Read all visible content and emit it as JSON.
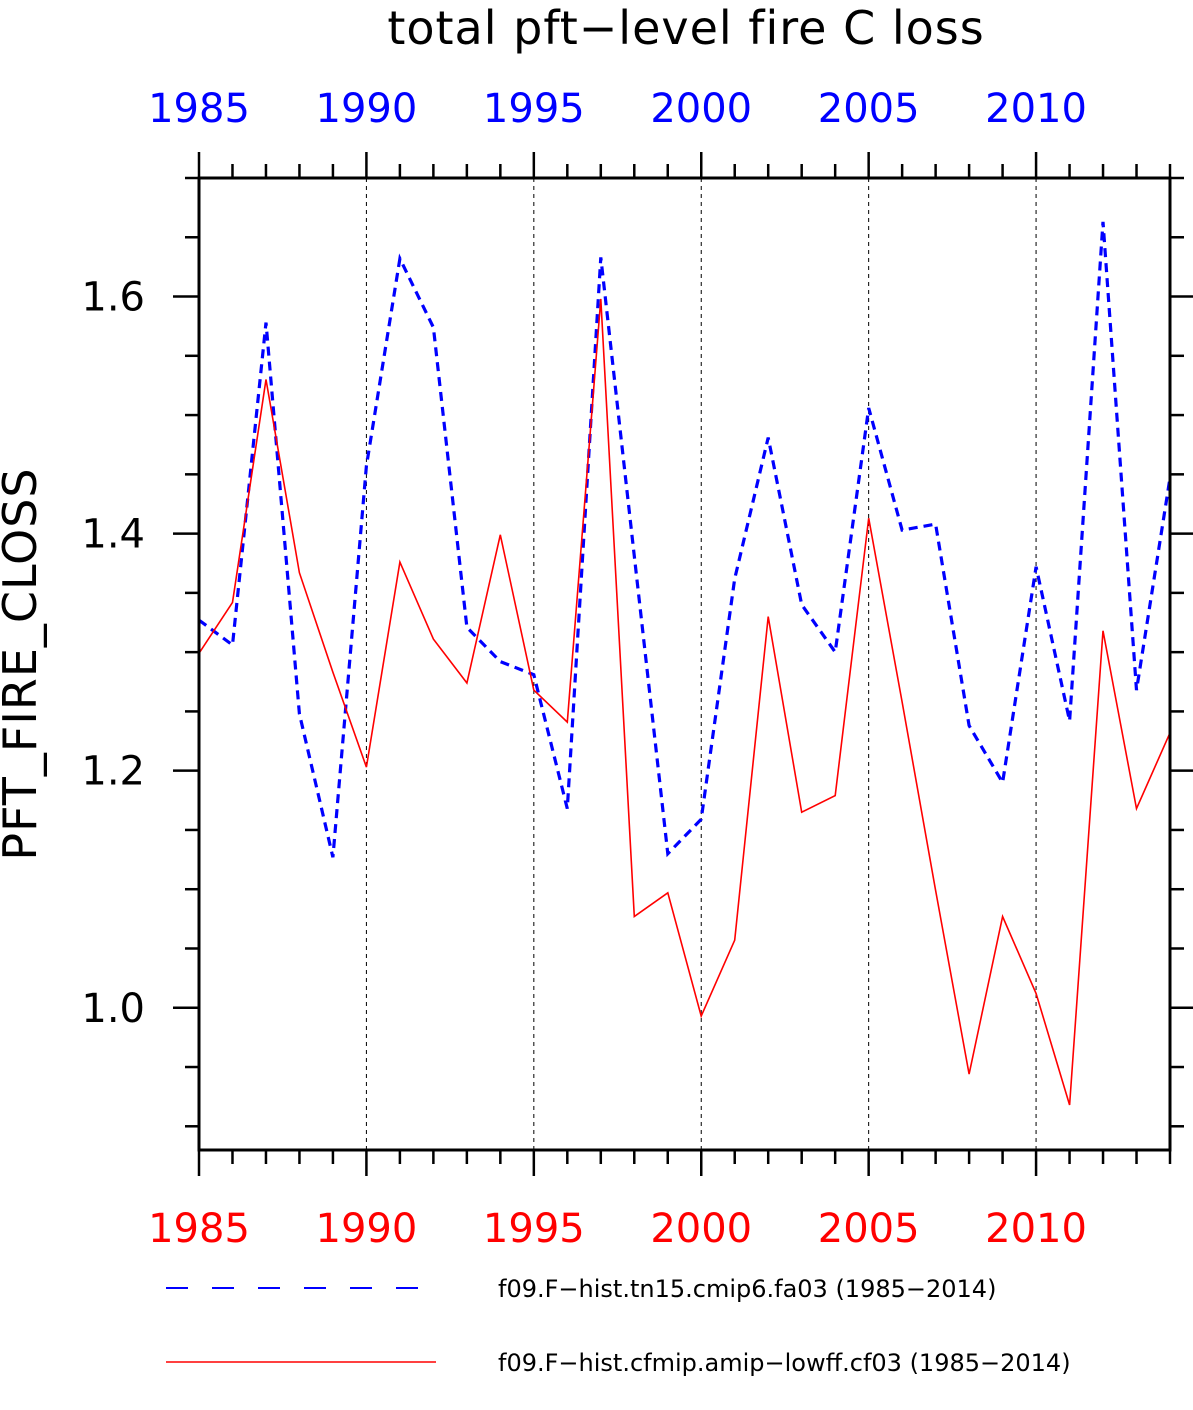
{
  "chart_data": {
    "type": "line",
    "title": "total pft−level fire C loss",
    "ylabel": "PFT_FIRE_CLOSS",
    "xlabel": "",
    "xlim": [
      1985,
      2014
    ],
    "ylim": [
      0.88,
      1.7
    ],
    "x_ticks": [
      1985,
      1990,
      1995,
      2000,
      2005,
      2010
    ],
    "x_tick_labels": [
      "1985",
      "1990",
      "1995",
      "2000",
      "2005",
      "2010"
    ],
    "y_ticks": [
      1.0,
      1.2,
      1.4,
      1.6
    ],
    "y_tick_labels": [
      "1.0",
      "1.2",
      "1.4",
      "1.6"
    ],
    "top_axis_color": "#0000ff",
    "bottom_axis_color": "#ff0000",
    "vertical_gridlines": true,
    "legend_position": "bottom",
    "x": [
      1985,
      1986,
      1987,
      1988,
      1989,
      1990,
      1991,
      1992,
      1993,
      1994,
      1995,
      1996,
      1997,
      1998,
      1999,
      2000,
      2001,
      2002,
      2003,
      2004,
      2005,
      2006,
      2007,
      2008,
      2009,
      2010,
      2011,
      2012,
      2013,
      2014
    ],
    "series": [
      {
        "name": "f09.F−hist.tn15.cmip6.fa03 (1985−2014)",
        "color": "#0000ff",
        "dash": "dashed",
        "values": [
          1.327,
          1.306,
          1.578,
          1.248,
          1.127,
          1.457,
          1.632,
          1.574,
          1.321,
          1.292,
          1.281,
          1.168,
          1.633,
          1.381,
          1.13,
          1.159,
          1.362,
          1.481,
          1.34,
          1.3,
          1.506,
          1.403,
          1.408,
          1.238,
          1.19,
          1.372,
          1.242,
          1.663,
          1.268,
          1.447
        ]
      },
      {
        "name": "f09.F−hist.cfmip.amip−lowff.cf03 (1985−2014)",
        "color": "#ff0000",
        "dash": "solid",
        "values": [
          1.299,
          1.342,
          1.53,
          1.367,
          1.283,
          1.203,
          1.376,
          1.311,
          1.274,
          1.399,
          1.268,
          1.241,
          1.598,
          1.077,
          1.097,
          0.993,
          1.057,
          1.33,
          1.165,
          1.179,
          1.413,
          1.258,
          1.099,
          0.944,
          1.077,
          1.012,
          0.918,
          1.318,
          1.168,
          1.232
        ]
      }
    ]
  }
}
